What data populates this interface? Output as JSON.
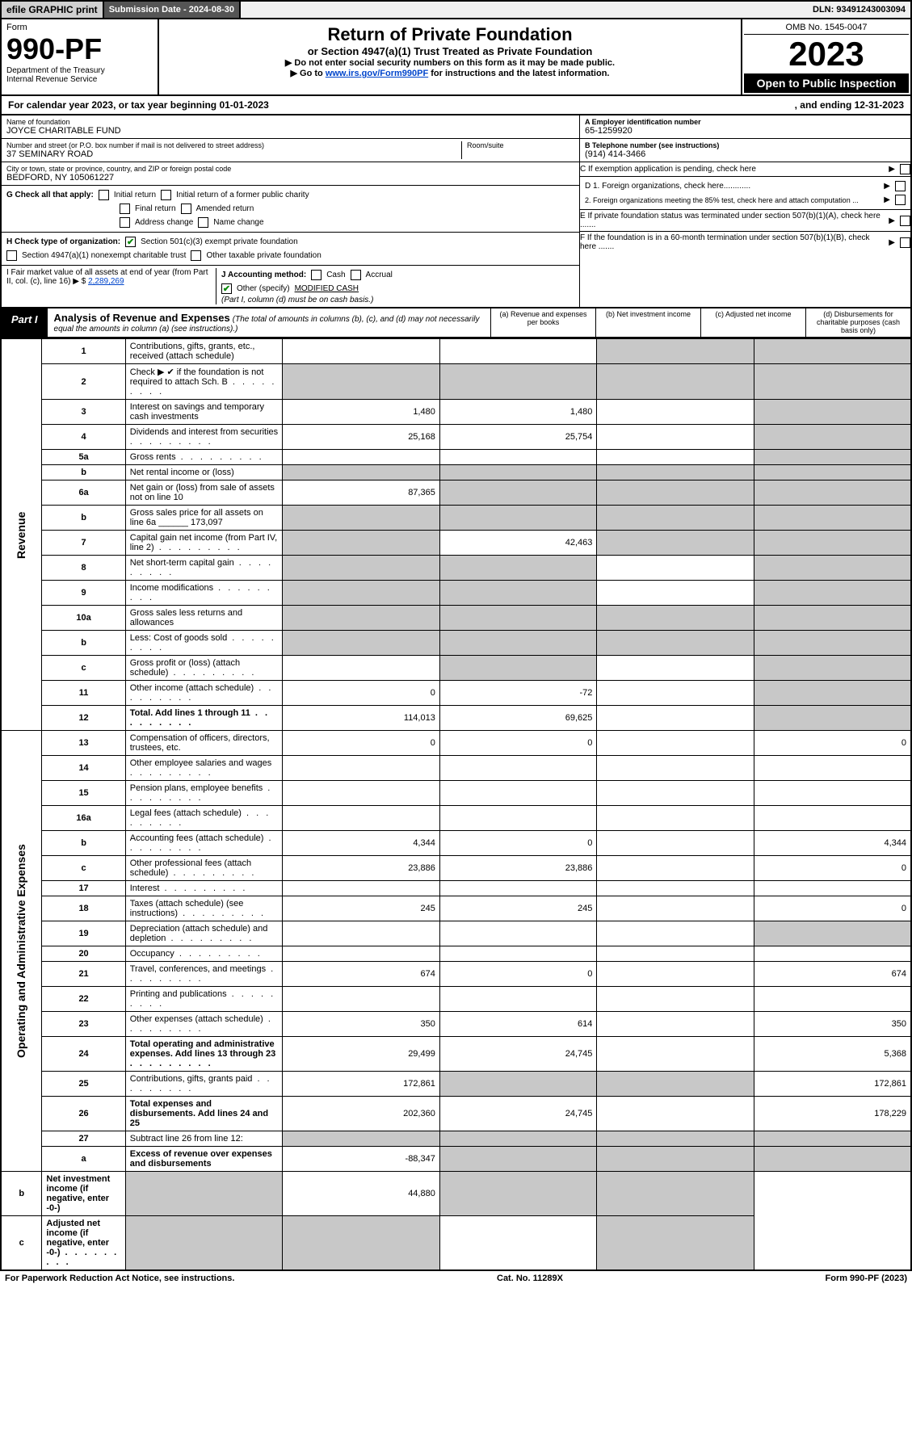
{
  "topbar": {
    "efile": "efile GRAPHIC print",
    "sub_label": "Submission Date - 2024-08-30",
    "dln": "DLN: 93491243003094"
  },
  "header": {
    "form_word": "Form",
    "form_num": "990-PF",
    "dept": "Department of the Treasury",
    "irs": "Internal Revenue Service",
    "title": "Return of Private Foundation",
    "subtitle": "or Section 4947(a)(1) Trust Treated as Private Foundation",
    "note1": "▶ Do not enter social security numbers on this form as it may be made public.",
    "note2_pre": "▶ Go to ",
    "note2_link": "www.irs.gov/Form990PF",
    "note2_post": " for instructions and the latest information.",
    "omb": "OMB No. 1545-0047",
    "year": "2023",
    "open": "Open to Public Inspection"
  },
  "calyear": {
    "left": "For calendar year 2023, or tax year beginning 01-01-2023",
    "right": ", and ending 12-31-2023"
  },
  "info": {
    "name_lbl": "Name of foundation",
    "name_val": "JOYCE CHARITABLE FUND",
    "addr_lbl": "Number and street (or P.O. box number if mail is not delivered to street address)",
    "addr_val": "37 SEMINARY ROAD",
    "room_lbl": "Room/suite",
    "city_lbl": "City or town, state or province, country, and ZIP or foreign postal code",
    "city_val": "BEDFORD, NY  105061227",
    "ein_lbl": "A Employer identification number",
    "ein_val": "65-1259920",
    "tel_lbl": "B Telephone number (see instructions)",
    "tel_val": "(914) 414-3466",
    "c_lbl": "C If exemption application is pending, check here",
    "d1": "D 1. Foreign organizations, check here............",
    "d2": "2. Foreign organizations meeting the 85% test, check here and attach computation ...",
    "e_lbl": "E  If private foundation status was terminated under section 507(b)(1)(A), check here .......",
    "f_lbl": "F  If the foundation is in a 60-month termination under section 507(b)(1)(B), check here .......",
    "g_lbl": "G Check all that apply:",
    "g_initial": "Initial return",
    "g_final": "Final return",
    "g_addr": "Address change",
    "g_initial_pub": "Initial return of a former public charity",
    "g_amended": "Amended return",
    "g_name": "Name change",
    "h_lbl": "H Check type of organization:",
    "h_501c3": "Section 501(c)(3) exempt private foundation",
    "h_4947": "Section 4947(a)(1) nonexempt charitable trust",
    "h_other": "Other taxable private foundation",
    "i_lbl": "I Fair market value of all assets at end of year (from Part II, col. (c), line 16)",
    "i_val": "2,289,269",
    "j_lbl": "J Accounting method:",
    "j_cash": "Cash",
    "j_accrual": "Accrual",
    "j_other": "Other (specify)",
    "j_other_val": "MODIFIED CASH",
    "j_note": "(Part I, column (d) must be on cash basis.)"
  },
  "part1": {
    "tab": "Part I",
    "title": "Analysis of Revenue and Expenses",
    "title_note": "(The total of amounts in columns (b), (c), and (d) may not necessarily equal the amounts in column (a) (see instructions).)",
    "col_a": "(a) Revenue and expenses per books",
    "col_b": "(b) Net investment income",
    "col_c": "(c) Adjusted net income",
    "col_d": "(d) Disbursements for charitable purposes (cash basis only)"
  },
  "sections": {
    "revenue": "Revenue",
    "opex": "Operating and Administrative Expenses"
  },
  "rows": [
    {
      "n": "1",
      "d": "Contributions, gifts, grants, etc., received (attach schedule)",
      "a": "",
      "b": "",
      "c": "g",
      "dd": "g"
    },
    {
      "n": "2",
      "d": "Check ▶ ✔ if the foundation is not required to attach Sch. B",
      "a": "g",
      "b": "g",
      "c": "g",
      "dd": "g",
      "dots": true
    },
    {
      "n": "3",
      "d": "Interest on savings and temporary cash investments",
      "a": "1,480",
      "b": "1,480",
      "c": "",
      "dd": "g"
    },
    {
      "n": "4",
      "d": "Dividends and interest from securities",
      "a": "25,168",
      "b": "25,754",
      "c": "",
      "dd": "g",
      "dots": true
    },
    {
      "n": "5a",
      "d": "Gross rents",
      "a": "",
      "b": "",
      "c": "",
      "dd": "g",
      "dots": true
    },
    {
      "n": "b",
      "d": "Net rental income or (loss)",
      "a": "g",
      "b": "g",
      "c": "g",
      "dd": "g"
    },
    {
      "n": "6a",
      "d": "Net gain or (loss) from sale of assets not on line 10",
      "a": "87,365",
      "b": "g",
      "c": "g",
      "dd": "g"
    },
    {
      "n": "b",
      "d": "Gross sales price for all assets on line 6a ______ 173,097",
      "a": "g",
      "b": "g",
      "c": "g",
      "dd": "g"
    },
    {
      "n": "7",
      "d": "Capital gain net income (from Part IV, line 2)",
      "a": "g",
      "b": "42,463",
      "c": "g",
      "dd": "g",
      "dots": true
    },
    {
      "n": "8",
      "d": "Net short-term capital gain",
      "a": "g",
      "b": "g",
      "c": "",
      "dd": "g",
      "dots": true
    },
    {
      "n": "9",
      "d": "Income modifications",
      "a": "g",
      "b": "g",
      "c": "",
      "dd": "g",
      "dots": true
    },
    {
      "n": "10a",
      "d": "Gross sales less returns and allowances",
      "a": "g",
      "b": "g",
      "c": "g",
      "dd": "g"
    },
    {
      "n": "b",
      "d": "Less: Cost of goods sold",
      "a": "g",
      "b": "g",
      "c": "g",
      "dd": "g",
      "dots": true
    },
    {
      "n": "c",
      "d": "Gross profit or (loss) (attach schedule)",
      "a": "",
      "b": "g",
      "c": "",
      "dd": "g",
      "dots": true
    },
    {
      "n": "11",
      "d": "Other income (attach schedule)",
      "a": "0",
      "b": "-72",
      "c": "",
      "dd": "g",
      "dots": true
    },
    {
      "n": "12",
      "d": "Total. Add lines 1 through 11",
      "a": "114,013",
      "b": "69,625",
      "c": "",
      "dd": "g",
      "bold": true,
      "dots": true
    },
    {
      "n": "13",
      "d": "Compensation of officers, directors, trustees, etc.",
      "a": "0",
      "b": "0",
      "c": "",
      "dd": "0",
      "sec": "oe"
    },
    {
      "n": "14",
      "d": "Other employee salaries and wages",
      "a": "",
      "b": "",
      "c": "",
      "dd": "",
      "dots": true
    },
    {
      "n": "15",
      "d": "Pension plans, employee benefits",
      "a": "",
      "b": "",
      "c": "",
      "dd": "",
      "dots": true
    },
    {
      "n": "16a",
      "d": "Legal fees (attach schedule)",
      "a": "",
      "b": "",
      "c": "",
      "dd": "",
      "dots": true
    },
    {
      "n": "b",
      "d": "Accounting fees (attach schedule)",
      "a": "4,344",
      "b": "0",
      "c": "",
      "dd": "4,344",
      "dots": true
    },
    {
      "n": "c",
      "d": "Other professional fees (attach schedule)",
      "a": "23,886",
      "b": "23,886",
      "c": "",
      "dd": "0",
      "dots": true
    },
    {
      "n": "17",
      "d": "Interest",
      "a": "",
      "b": "",
      "c": "",
      "dd": "",
      "dots": true
    },
    {
      "n": "18",
      "d": "Taxes (attach schedule) (see instructions)",
      "a": "245",
      "b": "245",
      "c": "",
      "dd": "0",
      "dots": true
    },
    {
      "n": "19",
      "d": "Depreciation (attach schedule) and depletion",
      "a": "",
      "b": "",
      "c": "",
      "dd": "g",
      "dots": true
    },
    {
      "n": "20",
      "d": "Occupancy",
      "a": "",
      "b": "",
      "c": "",
      "dd": "",
      "dots": true
    },
    {
      "n": "21",
      "d": "Travel, conferences, and meetings",
      "a": "674",
      "b": "0",
      "c": "",
      "dd": "674",
      "dots": true
    },
    {
      "n": "22",
      "d": "Printing and publications",
      "a": "",
      "b": "",
      "c": "",
      "dd": "",
      "dots": true
    },
    {
      "n": "23",
      "d": "Other expenses (attach schedule)",
      "a": "350",
      "b": "614",
      "c": "",
      "dd": "350",
      "dots": true
    },
    {
      "n": "24",
      "d": "Total operating and administrative expenses. Add lines 13 through 23",
      "a": "29,499",
      "b": "24,745",
      "c": "",
      "dd": "5,368",
      "bold": true,
      "dots": true
    },
    {
      "n": "25",
      "d": "Contributions, gifts, grants paid",
      "a": "172,861",
      "b": "g",
      "c": "g",
      "dd": "172,861",
      "dots": true
    },
    {
      "n": "26",
      "d": "Total expenses and disbursements. Add lines 24 and 25",
      "a": "202,360",
      "b": "24,745",
      "c": "",
      "dd": "178,229",
      "bold": true
    },
    {
      "n": "27",
      "d": "Subtract line 26 from line 12:",
      "a": "g",
      "b": "g",
      "c": "g",
      "dd": "g",
      "sec": "end"
    },
    {
      "n": "a",
      "d": "Excess of revenue over expenses and disbursements",
      "a": "-88,347",
      "b": "g",
      "c": "g",
      "dd": "g",
      "bold": true
    },
    {
      "n": "b",
      "d": "Net investment income (if negative, enter -0-)",
      "a": "g",
      "b": "44,880",
      "c": "g",
      "dd": "g",
      "bold": true
    },
    {
      "n": "c",
      "d": "Adjusted net income (if negative, enter -0-)",
      "a": "g",
      "b": "g",
      "c": "",
      "dd": "g",
      "bold": true,
      "dots": true
    }
  ],
  "footer": {
    "left": "For Paperwork Reduction Act Notice, see instructions.",
    "mid": "Cat. No. 11289X",
    "right": "Form 990-PF (2023)"
  },
  "colors": {
    "grey_cell": "#c8c8c8",
    "link": "#0045cc",
    "check_green": "#0a8a0a"
  }
}
